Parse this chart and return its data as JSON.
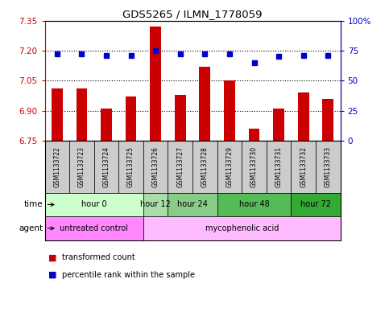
{
  "title": "GDS5265 / ILMN_1778059",
  "samples": [
    "GSM1133722",
    "GSM1133723",
    "GSM1133724",
    "GSM1133725",
    "GSM1133726",
    "GSM1133727",
    "GSM1133728",
    "GSM1133729",
    "GSM1133730",
    "GSM1133731",
    "GSM1133732",
    "GSM1133733"
  ],
  "transformed_count": [
    7.01,
    7.01,
    6.91,
    6.97,
    7.32,
    6.98,
    7.12,
    7.05,
    6.81,
    6.91,
    6.99,
    6.96
  ],
  "percentile_rank": [
    72,
    72,
    71,
    71,
    75,
    72,
    72,
    72,
    65,
    70,
    71,
    71
  ],
  "ylim_left": [
    6.75,
    7.35
  ],
  "ylim_right": [
    0,
    100
  ],
  "yticks_left": [
    6.75,
    6.9,
    7.05,
    7.2,
    7.35
  ],
  "yticks_right": [
    0,
    25,
    50,
    75,
    100
  ],
  "bar_color": "#cc0000",
  "dot_color": "#0000cc",
  "bar_width": 0.45,
  "time_groups": [
    {
      "label": "hour 0",
      "start": 0,
      "end": 3,
      "color": "#ccffcc"
    },
    {
      "label": "hour 12",
      "start": 4,
      "end": 4,
      "color": "#aaddaa"
    },
    {
      "label": "hour 24",
      "start": 5,
      "end": 6,
      "color": "#88cc88"
    },
    {
      "label": "hour 48",
      "start": 7,
      "end": 9,
      "color": "#55bb55"
    },
    {
      "label": "hour 72",
      "start": 10,
      "end": 11,
      "color": "#33aa33"
    }
  ],
  "agent_groups": [
    {
      "label": "untreated control",
      "start": 0,
      "end": 3,
      "color": "#ff88ff"
    },
    {
      "label": "mycophenolic acid",
      "start": 4,
      "end": 11,
      "color": "#ffbbff"
    }
  ],
  "grid_color": "black",
  "grid_style": "dotted",
  "sample_bg": "#cccccc",
  "plot_bg": "#ffffff",
  "legend_bar_color": "#cc0000",
  "legend_dot_color": "#0000cc"
}
